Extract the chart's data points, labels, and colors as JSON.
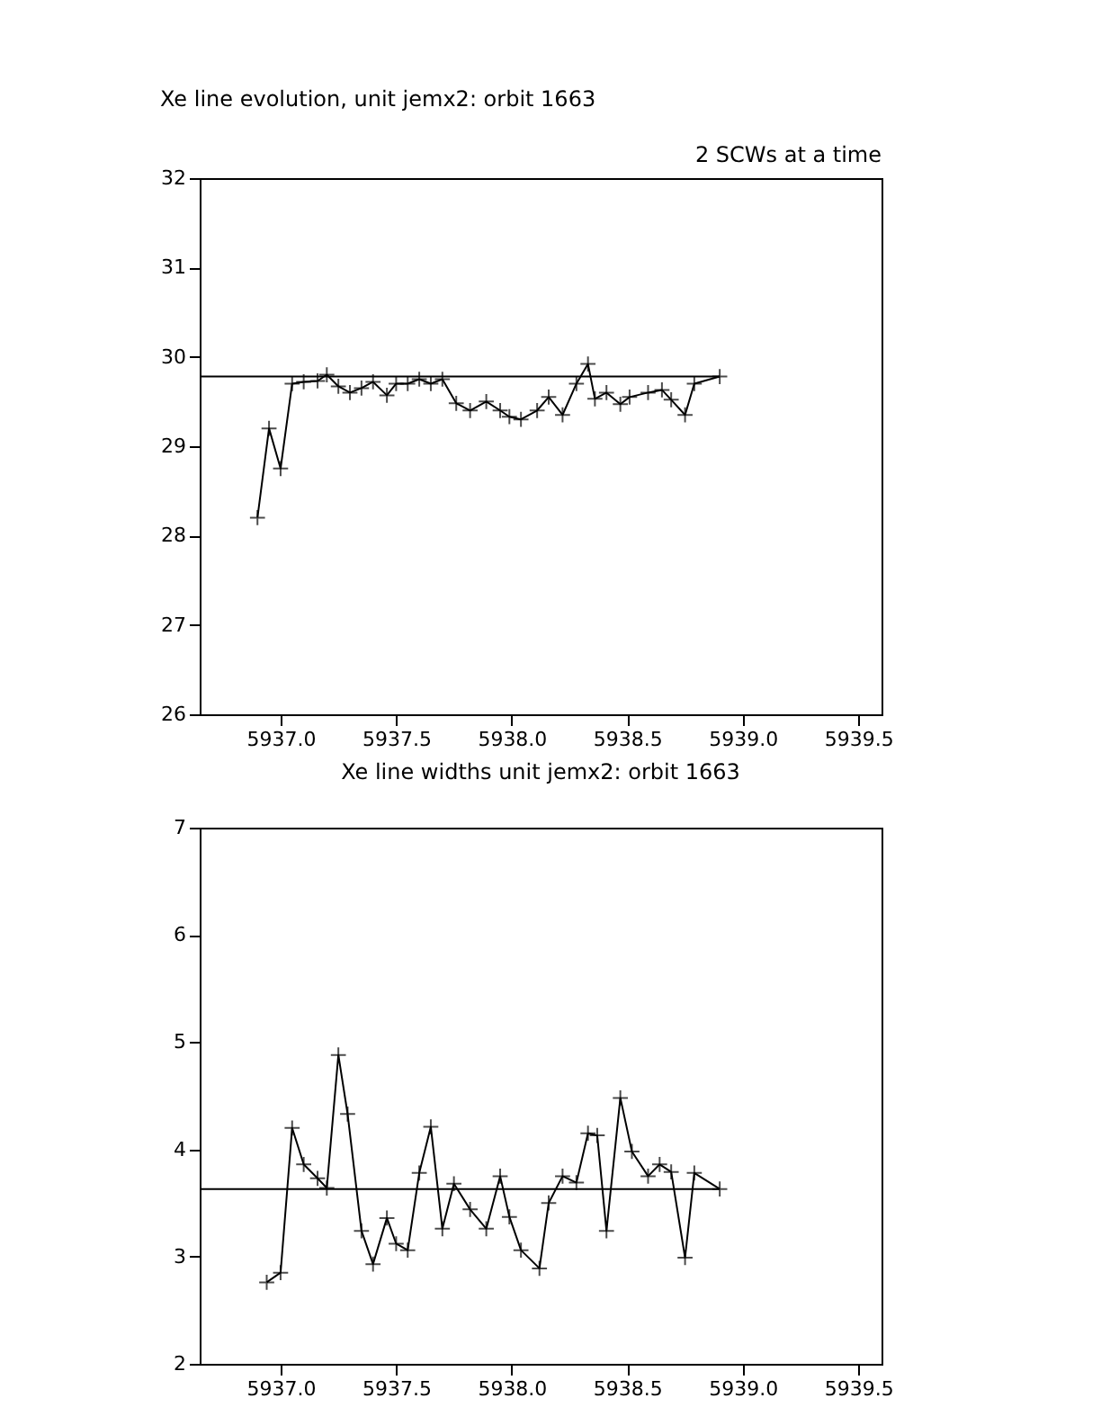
{
  "chart_data": [
    {
      "type": "line",
      "title": "Xe line evolution, unit jemx2: orbit 1663",
      "subtitle": "2 SCWs at a time",
      "marker": "cross",
      "grid": false,
      "xlim": [
        5936.65,
        5939.6
      ],
      "xticks": [
        {
          "value": 5937,
          "label": "5937.0"
        },
        {
          "value": 5937.5,
          "label": "5937.5"
        },
        {
          "value": 5938,
          "label": "5938.0"
        },
        {
          "value": 5938.5,
          "label": "5938.5"
        },
        {
          "value": 5939,
          "label": "5939.0"
        },
        {
          "value": 5939.5,
          "label": "5939.5"
        }
      ],
      "ylim": [
        26,
        32
      ],
      "yticks": [
        26,
        27,
        28,
        29,
        30,
        31,
        32
      ],
      "series": [
        {
          "color": "#000000",
          "x": [
            5936.9,
            5936.95,
            5937.0,
            5937.05,
            5937.1,
            5937.16,
            5937.2,
            5937.25,
            5937.3,
            5937.35,
            5937.4,
            5937.46,
            5937.5,
            5937.55,
            5937.6,
            5937.65,
            5937.7,
            5937.76,
            5937.82,
            5937.89,
            5937.95,
            5937.99,
            5938.04,
            5938.11,
            5938.16,
            5938.22,
            5938.28,
            5938.33,
            5938.36,
            5938.41,
            5938.47,
            5938.51,
            5938.59,
            5938.65,
            5938.69,
            5938.75,
            5938.79,
            5938.9
          ],
          "values": [
            28.2,
            29.2,
            28.75,
            29.7,
            29.72,
            29.73,
            29.8,
            29.67,
            29.6,
            29.65,
            29.72,
            29.57,
            29.7,
            29.7,
            29.75,
            29.7,
            29.75,
            29.48,
            29.4,
            29.5,
            29.4,
            29.33,
            29.3,
            29.4,
            29.55,
            29.35,
            29.7,
            29.92,
            29.53,
            29.6,
            29.47,
            29.55,
            29.6,
            29.63,
            29.52,
            29.35,
            29.7,
            29.78
          ]
        },
        {
          "type": "line",
          "marker": "none",
          "color": "#000000",
          "x": [
            5936.65,
            5938.9
          ],
          "values": [
            29.78,
            29.78
          ]
        }
      ]
    },
    {
      "type": "line",
      "title": "Xe line widths unit jemx2: orbit 1663",
      "marker": "cross",
      "grid": false,
      "xlim": [
        5936.65,
        5939.6
      ],
      "xticks": [
        {
          "value": 5937,
          "label": "5937.0"
        },
        {
          "value": 5937.5,
          "label": "5937.5"
        },
        {
          "value": 5938,
          "label": "5938.0"
        },
        {
          "value": 5938.5,
          "label": "5938.5"
        },
        {
          "value": 5939,
          "label": "5939.0"
        },
        {
          "value": 5939.5,
          "label": "5939.5"
        }
      ],
      "ylim": [
        2,
        7
      ],
      "yticks": [
        2,
        3,
        4,
        5,
        6,
        7
      ],
      "series": [
        {
          "color": "#000000",
          "x": [
            5936.94,
            5937.0,
            5937.05,
            5937.1,
            5937.16,
            5937.2,
            5937.25,
            5937.29,
            5937.35,
            5937.4,
            5937.46,
            5937.5,
            5937.55,
            5937.6,
            5937.65,
            5937.7,
            5937.75,
            5937.82,
            5937.89,
            5937.95,
            5937.99,
            5938.04,
            5938.12,
            5938.16,
            5938.22,
            5938.28,
            5938.33,
            5938.37,
            5938.41,
            5938.47,
            5938.52,
            5938.59,
            5938.64,
            5938.69,
            5938.75,
            5938.79,
            5938.9
          ],
          "values": [
            2.76,
            2.85,
            4.2,
            3.86,
            3.73,
            3.64,
            4.88,
            4.33,
            3.24,
            2.93,
            3.36,
            3.12,
            3.06,
            3.78,
            4.21,
            3.26,
            3.68,
            3.44,
            3.26,
            3.75,
            3.37,
            3.06,
            2.89,
            3.5,
            3.75,
            3.69,
            4.15,
            4.13,
            3.24,
            4.48,
            3.98,
            3.75,
            3.86,
            3.79,
            2.99,
            3.78,
            3.63
          ]
        },
        {
          "type": "line",
          "marker": "none",
          "color": "#000000",
          "x": [
            5936.65,
            5938.9
          ],
          "values": [
            3.63,
            3.63
          ]
        }
      ]
    }
  ]
}
